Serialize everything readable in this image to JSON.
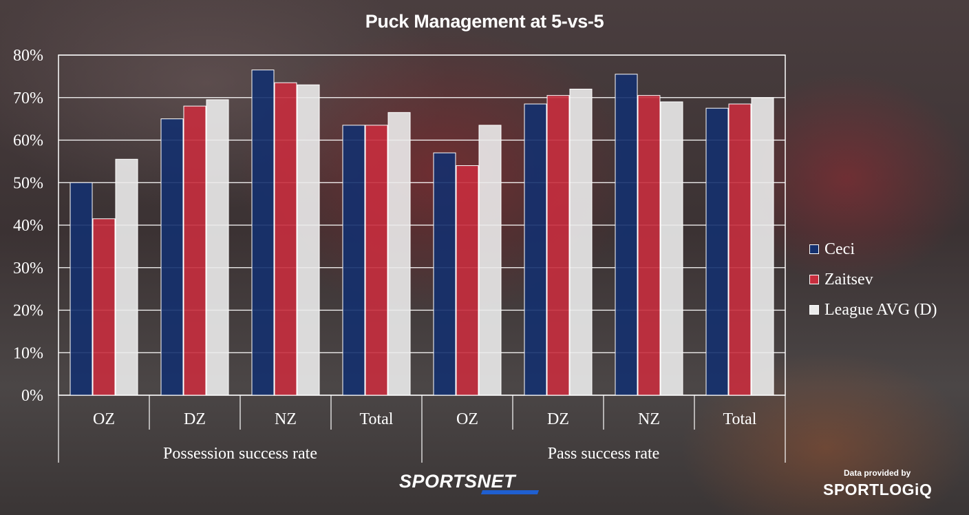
{
  "chart_data": {
    "type": "bar",
    "title": "Puck Management at 5-vs-5",
    "groups": [
      {
        "label": "Possession success rate",
        "categories": [
          "OZ",
          "DZ",
          "NZ",
          "Total"
        ]
      },
      {
        "label": "Pass success rate",
        "categories": [
          "OZ",
          "DZ",
          "NZ",
          "Total"
        ]
      }
    ],
    "categories": [
      "OZ",
      "DZ",
      "NZ",
      "Total",
      "OZ",
      "DZ",
      "NZ",
      "Total"
    ],
    "series": [
      {
        "name": "Ceci",
        "color": "#14306e",
        "values": [
          50,
          65,
          76.5,
          63.5,
          57,
          68.5,
          75.5,
          67.5
        ]
      },
      {
        "name": "Zaitsev",
        "color": "#c72e3e",
        "values": [
          41.5,
          68,
          73.5,
          63.5,
          54,
          70.5,
          70.5,
          68.5
        ]
      },
      {
        "name": "League AVG (D)",
        "color": "#ebebeb",
        "values": [
          55.5,
          69.5,
          73,
          66.5,
          63.5,
          72,
          69,
          70
        ]
      }
    ],
    "yticks": [
      "0%",
      "10%",
      "20%",
      "30%",
      "40%",
      "50%",
      "60%",
      "70%",
      "80%"
    ],
    "ylim": [
      0,
      80
    ],
    "grid": true,
    "legend": "right"
  },
  "branding": {
    "network": "SPORTSNET",
    "credit_label": "Data provided by",
    "credit_logo": "SPORTLOGiQ"
  }
}
